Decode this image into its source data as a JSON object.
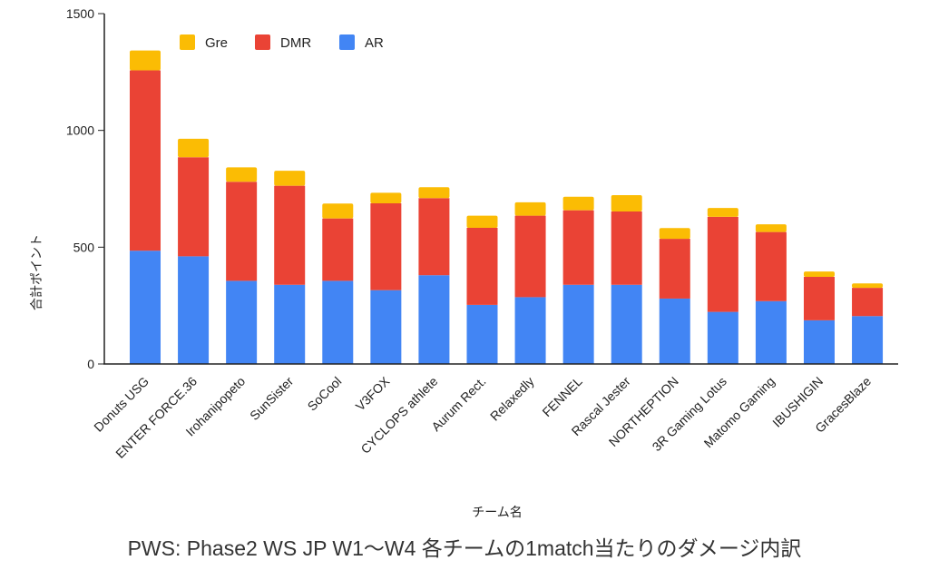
{
  "chart_data": {
    "type": "bar",
    "stacked": true,
    "title": "PWS: Phase2 WS JP W1〜W4 各チームの1match当たりのダメージ内訳",
    "xlabel": "チーム名",
    "ylabel": "合計ポイント",
    "ylim": [
      0,
      1500
    ],
    "yticks": [
      "0",
      "500",
      "1000",
      "1500"
    ],
    "grid": false,
    "legend_position": "top-left",
    "categories": [
      "Donuts USG",
      "ENTER FORCE.36",
      "Irohanipopeto",
      "SunSister",
      "SoCool",
      "V3FOX",
      "CYCLOPS athlete",
      "Aurum Rect.",
      "Relaxedly",
      "FENNEL",
      "Rascal Jester",
      "NORTHEPTION",
      "3R Gaming Lotus",
      "Matomo Gaming",
      "IBUSHIGIN",
      "GracesBlaze"
    ],
    "series": [
      {
        "name": "AR",
        "color": "#4285f4",
        "values": [
          485,
          461,
          356,
          339,
          356,
          316,
          380,
          253,
          286,
          339,
          339,
          280,
          223,
          269,
          187,
          205
        ]
      },
      {
        "name": "DMR",
        "color": "#ea4335",
        "values": [
          772,
          424,
          424,
          424,
          267,
          372,
          330,
          330,
          349,
          319,
          314,
          256,
          407,
          296,
          186,
          121
        ]
      },
      {
        "name": "Gre",
        "color": "#fbbc04",
        "values": [
          85,
          79,
          62,
          64,
          64,
          45,
          47,
          52,
          57,
          58,
          70,
          46,
          38,
          33,
          23,
          19
        ]
      }
    ],
    "legend_order": [
      "Gre",
      "DMR",
      "AR"
    ]
  }
}
